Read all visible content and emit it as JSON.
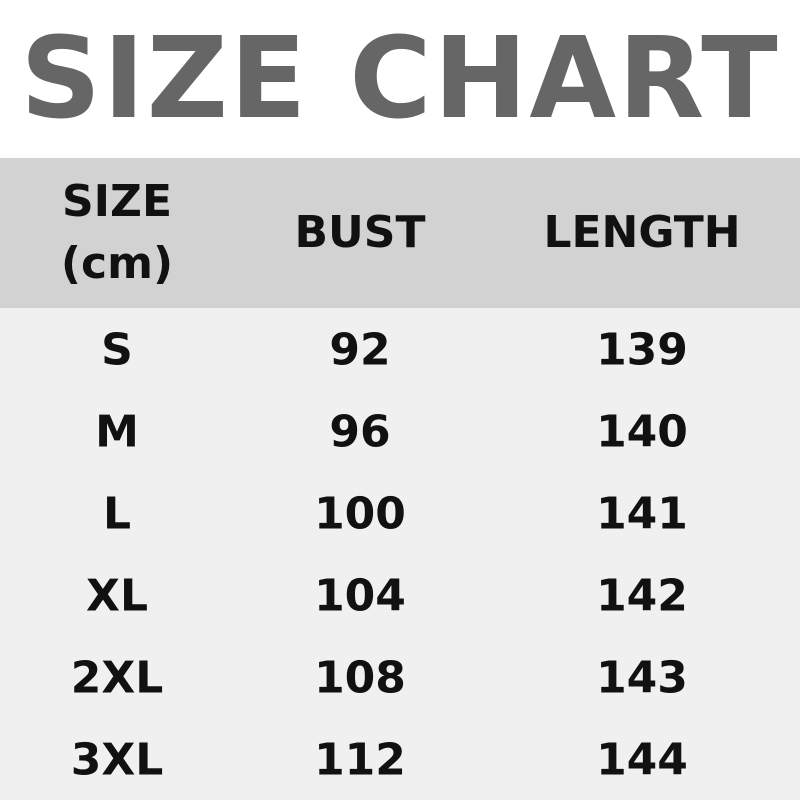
{
  "title": "SIZE CHART",
  "headers": {
    "size_line1": "SIZE",
    "size_line2": "(cm)",
    "bust": "BUST",
    "length": "LENGTH"
  },
  "rows": [
    {
      "size": "S",
      "bust": "92",
      "length": "139"
    },
    {
      "size": "M",
      "bust": "96",
      "length": "140"
    },
    {
      "size": "L",
      "bust": "100",
      "length": "141"
    },
    {
      "size": "XL",
      "bust": "104",
      "length": "142"
    },
    {
      "size": "2XL",
      "bust": "108",
      "length": "143"
    },
    {
      "size": "3XL",
      "bust": "112",
      "length": "144"
    }
  ],
  "colors": {
    "title": "#666666",
    "header_bg": "#d2d2d2",
    "body_bg": "#f0f0f0"
  }
}
